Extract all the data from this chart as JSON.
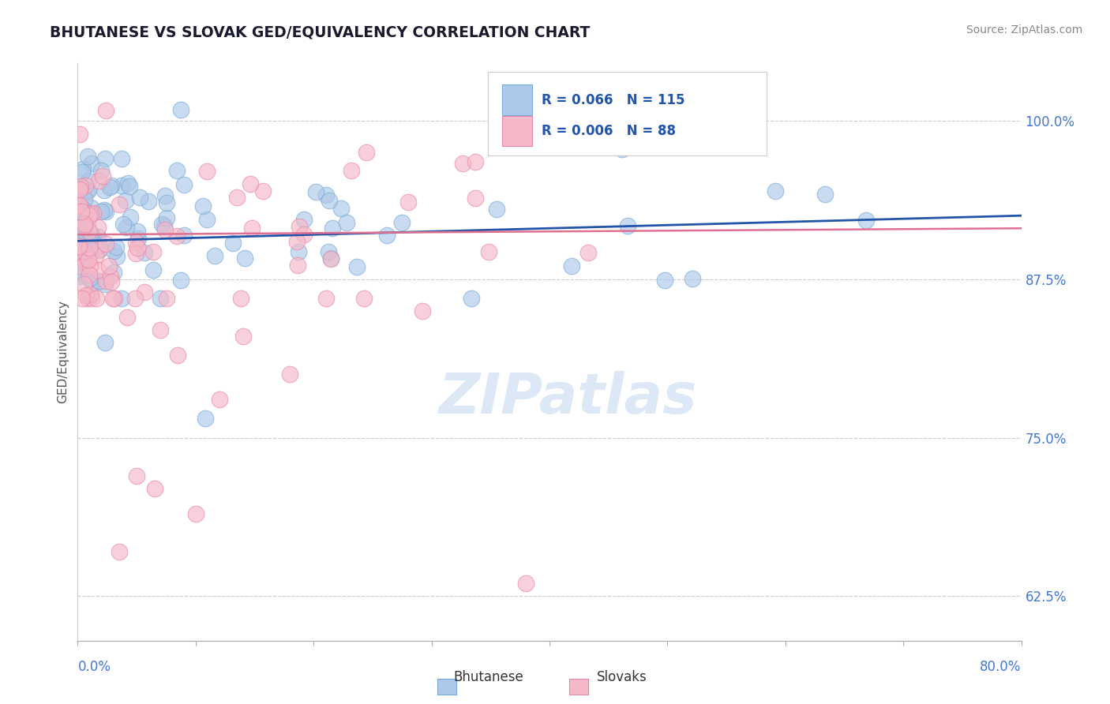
{
  "title": "BHUTANESE VS SLOVAK GED/EQUIVALENCY CORRELATION CHART",
  "source_text": "Source: ZipAtlas.com",
  "ylabel": "GED/Equivalency",
  "xlim": [
    0.0,
    80.0
  ],
  "ylim": [
    59.0,
    104.5
  ],
  "yticks": [
    62.5,
    75.0,
    87.5,
    100.0
  ],
  "ytick_labels": [
    "62.5%",
    "75.0%",
    "87.5%",
    "100.0%"
  ],
  "bhutanese_color": "#adc8e8",
  "bhutanese_edge": "#7aaad4",
  "slovak_color": "#f5b8c8",
  "slovak_edge": "#e888a8",
  "blue_line_color": "#2255aa",
  "pink_line_color": "#e07090",
  "watermark_text": "ZIPatlas",
  "watermark_color": "#dce8f5",
  "seed": 42,
  "n_blue": 115,
  "n_pink": 88
}
